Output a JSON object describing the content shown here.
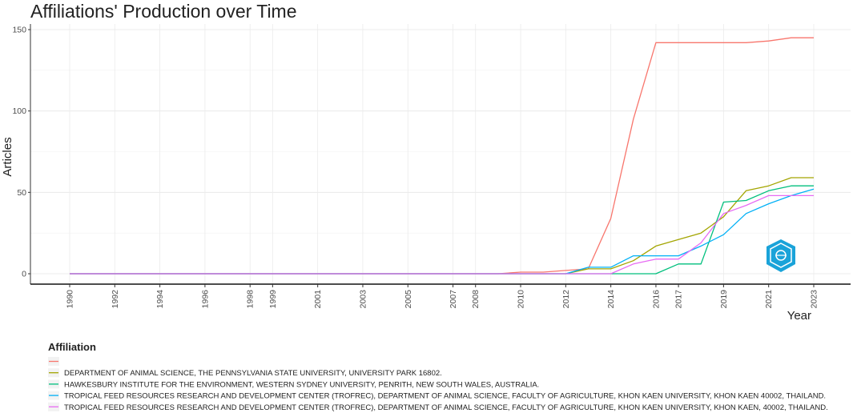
{
  "chart_data": {
    "type": "line",
    "title": "Affiliations' Production over Time",
    "xlabel": "Year",
    "ylabel": "Articles",
    "xlim": [
      1990,
      2023
    ],
    "ylim": [
      0,
      150
    ],
    "grid": true,
    "legend_position": "bottom",
    "legend_title": "Affiliation",
    "x_ticks": [
      1990,
      1992,
      1994,
      1996,
      1998,
      1999,
      2001,
      2003,
      2005,
      2007,
      2008,
      2010,
      2012,
      2014,
      2016,
      2017,
      2019,
      2021,
      2023
    ],
    "y_ticks": [
      0,
      50,
      100,
      150
    ],
    "series": [
      {
        "name": "",
        "color": "#f8766d",
        "points": [
          [
            1990,
            0
          ],
          [
            2009,
            0
          ],
          [
            2010,
            1
          ],
          [
            2011,
            1
          ],
          [
            2012,
            2
          ],
          [
            2013,
            3
          ],
          [
            2014,
            34
          ],
          [
            2015,
            95
          ],
          [
            2016,
            142
          ],
          [
            2017,
            142
          ],
          [
            2018,
            142
          ],
          [
            2019,
            142
          ],
          [
            2020,
            142
          ],
          [
            2021,
            143
          ],
          [
            2022,
            145
          ],
          [
            2023,
            145
          ]
        ]
      },
      {
        "name": "DEPARTMENT OF ANIMAL SCIENCE, THE PENNSYLVANIA STATE UNIVERSITY, UNIVERSITY PARK 16802.",
        "color": "#a3a500",
        "points": [
          [
            1990,
            0
          ],
          [
            2012,
            0
          ],
          [
            2013,
            3
          ],
          [
            2014,
            3
          ],
          [
            2015,
            8
          ],
          [
            2016,
            17
          ],
          [
            2017,
            21
          ],
          [
            2018,
            25
          ],
          [
            2019,
            35
          ],
          [
            2020,
            51
          ],
          [
            2021,
            54
          ],
          [
            2022,
            59
          ],
          [
            2023,
            59
          ]
        ]
      },
      {
        "name": "HAWKESBURY INSTITUTE FOR THE ENVIRONMENT, WESTERN SYDNEY UNIVERSITY, PENRITH, NEW SOUTH WALES, AUSTRALIA.",
        "color": "#00bf7d",
        "points": [
          [
            1990,
            0
          ],
          [
            2016,
            0
          ],
          [
            2017,
            6
          ],
          [
            2018,
            6
          ],
          [
            2019,
            44
          ],
          [
            2020,
            45
          ],
          [
            2021,
            51
          ],
          [
            2022,
            54
          ],
          [
            2023,
            54
          ]
        ]
      },
      {
        "name": "TROPICAL FEED RESOURCES RESEARCH AND DEVELOPMENT CENTER (TROFREC), DEPARTMENT OF ANIMAL SCIENCE, FACULTY OF AGRICULTURE, KHON KAEN UNIVERSITY, KHON KAEN 40002, THAILAND.",
        "color": "#00b0f6",
        "points": [
          [
            1990,
            0
          ],
          [
            2012,
            0
          ],
          [
            2013,
            4
          ],
          [
            2014,
            4
          ],
          [
            2015,
            11
          ],
          [
            2016,
            11
          ],
          [
            2017,
            11
          ],
          [
            2018,
            17
          ],
          [
            2019,
            24
          ],
          [
            2020,
            37
          ],
          [
            2021,
            43
          ],
          [
            2022,
            48
          ],
          [
            2023,
            52
          ]
        ]
      },
      {
        "name": "TROPICAL FEED RESOURCES RESEARCH AND DEVELOPMENT CENTER (TROFREC), DEPARTMENT OF ANIMAL SCIENCE, FACULTY OF AGRICULTURE, KHON KAEN UNIVERSITY, KHON KAEN, 40002, THAILAND.",
        "color": "#e76bf3",
        "points": [
          [
            1990,
            0
          ],
          [
            2014,
            0
          ],
          [
            2015,
            6
          ],
          [
            2016,
            9
          ],
          [
            2017,
            9
          ],
          [
            2018,
            19
          ],
          [
            2019,
            37
          ],
          [
            2020,
            42
          ],
          [
            2021,
            48
          ],
          [
            2022,
            48
          ],
          [
            2023,
            48
          ]
        ]
      }
    ]
  },
  "watermark": {
    "icon": "shield-badge-icon",
    "color": "#1aa3d9"
  }
}
